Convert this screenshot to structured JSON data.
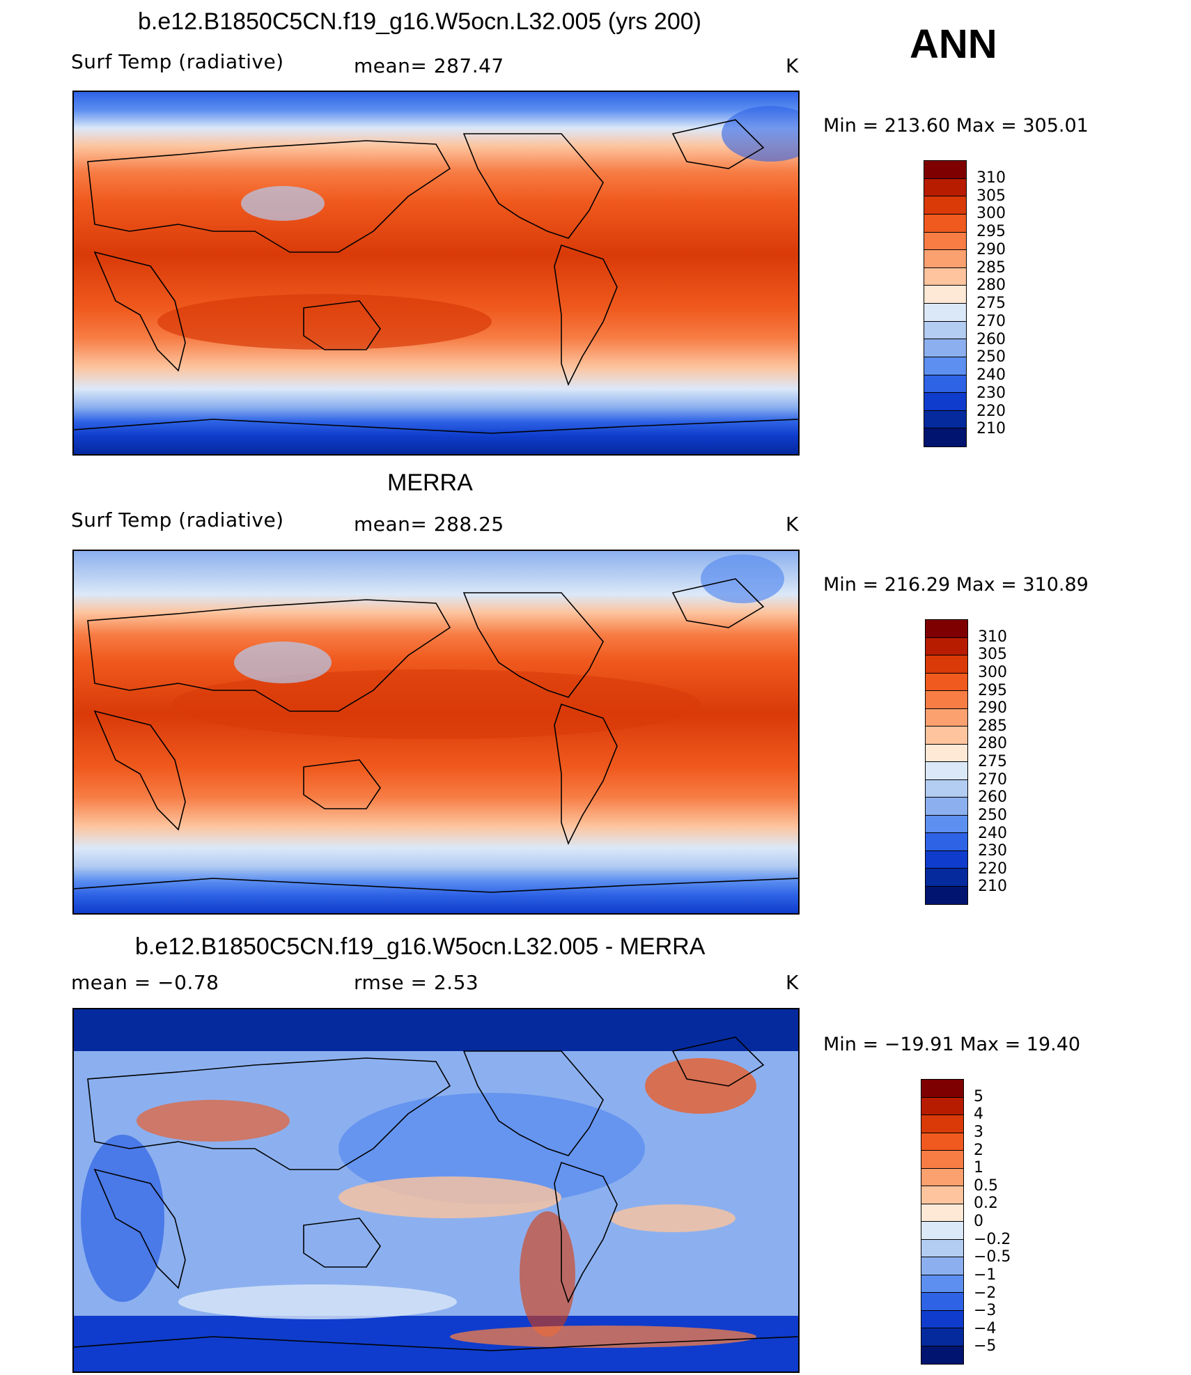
{
  "figure": {
    "season": "ANN"
  },
  "panels": [
    {
      "id": "model",
      "title": "b.e12.B1850C5CN.f19_g16.W5ocn.L32.005 (yrs 200)",
      "left_label": "Surf Temp (radiative)",
      "center_label": "mean= 287.47",
      "units": "K",
      "minmax": "Min = 213.60 Max = 305.01"
    },
    {
      "id": "obs",
      "title": "MERRA",
      "left_label": "Surf Temp (radiative)",
      "center_label": "mean= 288.25",
      "units": "K",
      "minmax": "Min = 216.29 Max = 310.89"
    },
    {
      "id": "diff",
      "title": "b.e12.B1850C5CN.f19_g16.W5ocn.L32.005 - MERRA",
      "left_label": "mean = −0.78",
      "center_label": "rmse = 2.53",
      "units": "K",
      "minmax": "Min = −19.91 Max = 19.40"
    }
  ],
  "colorbars": {
    "temperature": {
      "levels": [
        "310",
        "305",
        "300",
        "295",
        "290",
        "285",
        "280",
        "275",
        "270",
        "260",
        "250",
        "240",
        "230",
        "220",
        "210"
      ],
      "colors": [
        "#7f0000",
        "#b81c00",
        "#d93a08",
        "#f05a1e",
        "#f77d45",
        "#fba06f",
        "#fdc49e",
        "#fee8d6",
        "#dbe8f8",
        "#b3ccf2",
        "#8cb0ef",
        "#5c8ff0",
        "#2e63e6",
        "#0f3ccc",
        "#042a9e",
        "#001470"
      ]
    },
    "difference": {
      "levels": [
        "5",
        "4",
        "3",
        "2",
        "1",
        "0.5",
        "0.2",
        "0",
        "−0.2",
        "−0.5",
        "−1",
        "−2",
        "−3",
        "−4",
        "−5"
      ],
      "colors": [
        "#7f0000",
        "#b81c00",
        "#d93a08",
        "#f05a1e",
        "#f77d45",
        "#fba06f",
        "#fdc49e",
        "#fee8d6",
        "#dbe8f8",
        "#b3ccf2",
        "#8cb0ef",
        "#5c8ff0",
        "#2e63e6",
        "#0f3ccc",
        "#042a9e",
        "#001470"
      ]
    }
  }
}
